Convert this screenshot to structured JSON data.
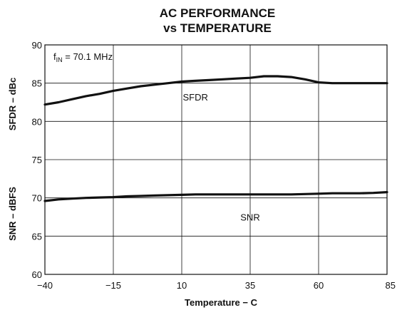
{
  "chart_data": {
    "type": "line",
    "title": [
      "AC PERFORMANCE",
      "vs TEMPERATURE"
    ],
    "xlabel": "Temperature −  C",
    "ylabel_top": "SFDR – dBc",
    "ylabel_bottom": "SNR – dBFS",
    "xlim": [
      -40,
      85
    ],
    "ylim": [
      60,
      90
    ],
    "x_ticks": [
      -40,
      -15,
      10,
      35,
      60,
      85
    ],
    "x_tick_labels": [
      "−40",
      "−15",
      "10",
      "35",
      "60",
      "85"
    ],
    "y_ticks": [
      60,
      65,
      70,
      75,
      80,
      85,
      90
    ],
    "y_tick_labels": [
      "60",
      "65",
      "70",
      "75",
      "80",
      "85",
      "90"
    ],
    "grid": true,
    "annotation": {
      "prefix": "f",
      "subscript": "IN",
      "text": " = 70.1 MHz"
    },
    "series": [
      {
        "name": "SFDR",
        "x": [
          -40,
          -35,
          -30,
          -25,
          -20,
          -15,
          -10,
          -5,
          0,
          5,
          10,
          15,
          20,
          25,
          30,
          35,
          40,
          45,
          50,
          55,
          60,
          65,
          70,
          75,
          80,
          85
        ],
        "y": [
          82.2,
          82.5,
          82.9,
          83.3,
          83.6,
          84.0,
          84.3,
          84.6,
          84.8,
          85.0,
          85.2,
          85.3,
          85.4,
          85.5,
          85.6,
          85.7,
          85.9,
          85.9,
          85.8,
          85.5,
          85.1,
          85.0,
          85.0,
          85.0,
          85.0,
          85.0
        ]
      },
      {
        "name": "SNR",
        "x": [
          -40,
          -35,
          -30,
          -25,
          -20,
          -15,
          -10,
          -5,
          0,
          5,
          10,
          15,
          20,
          25,
          30,
          35,
          40,
          45,
          50,
          55,
          60,
          65,
          70,
          75,
          80,
          85
        ],
        "y": [
          69.6,
          69.8,
          69.9,
          70.0,
          70.05,
          70.1,
          70.2,
          70.25,
          70.3,
          70.35,
          70.4,
          70.45,
          70.45,
          70.45,
          70.45,
          70.45,
          70.45,
          70.45,
          70.45,
          70.5,
          70.55,
          70.6,
          70.6,
          70.6,
          70.65,
          70.75
        ]
      }
    ]
  }
}
